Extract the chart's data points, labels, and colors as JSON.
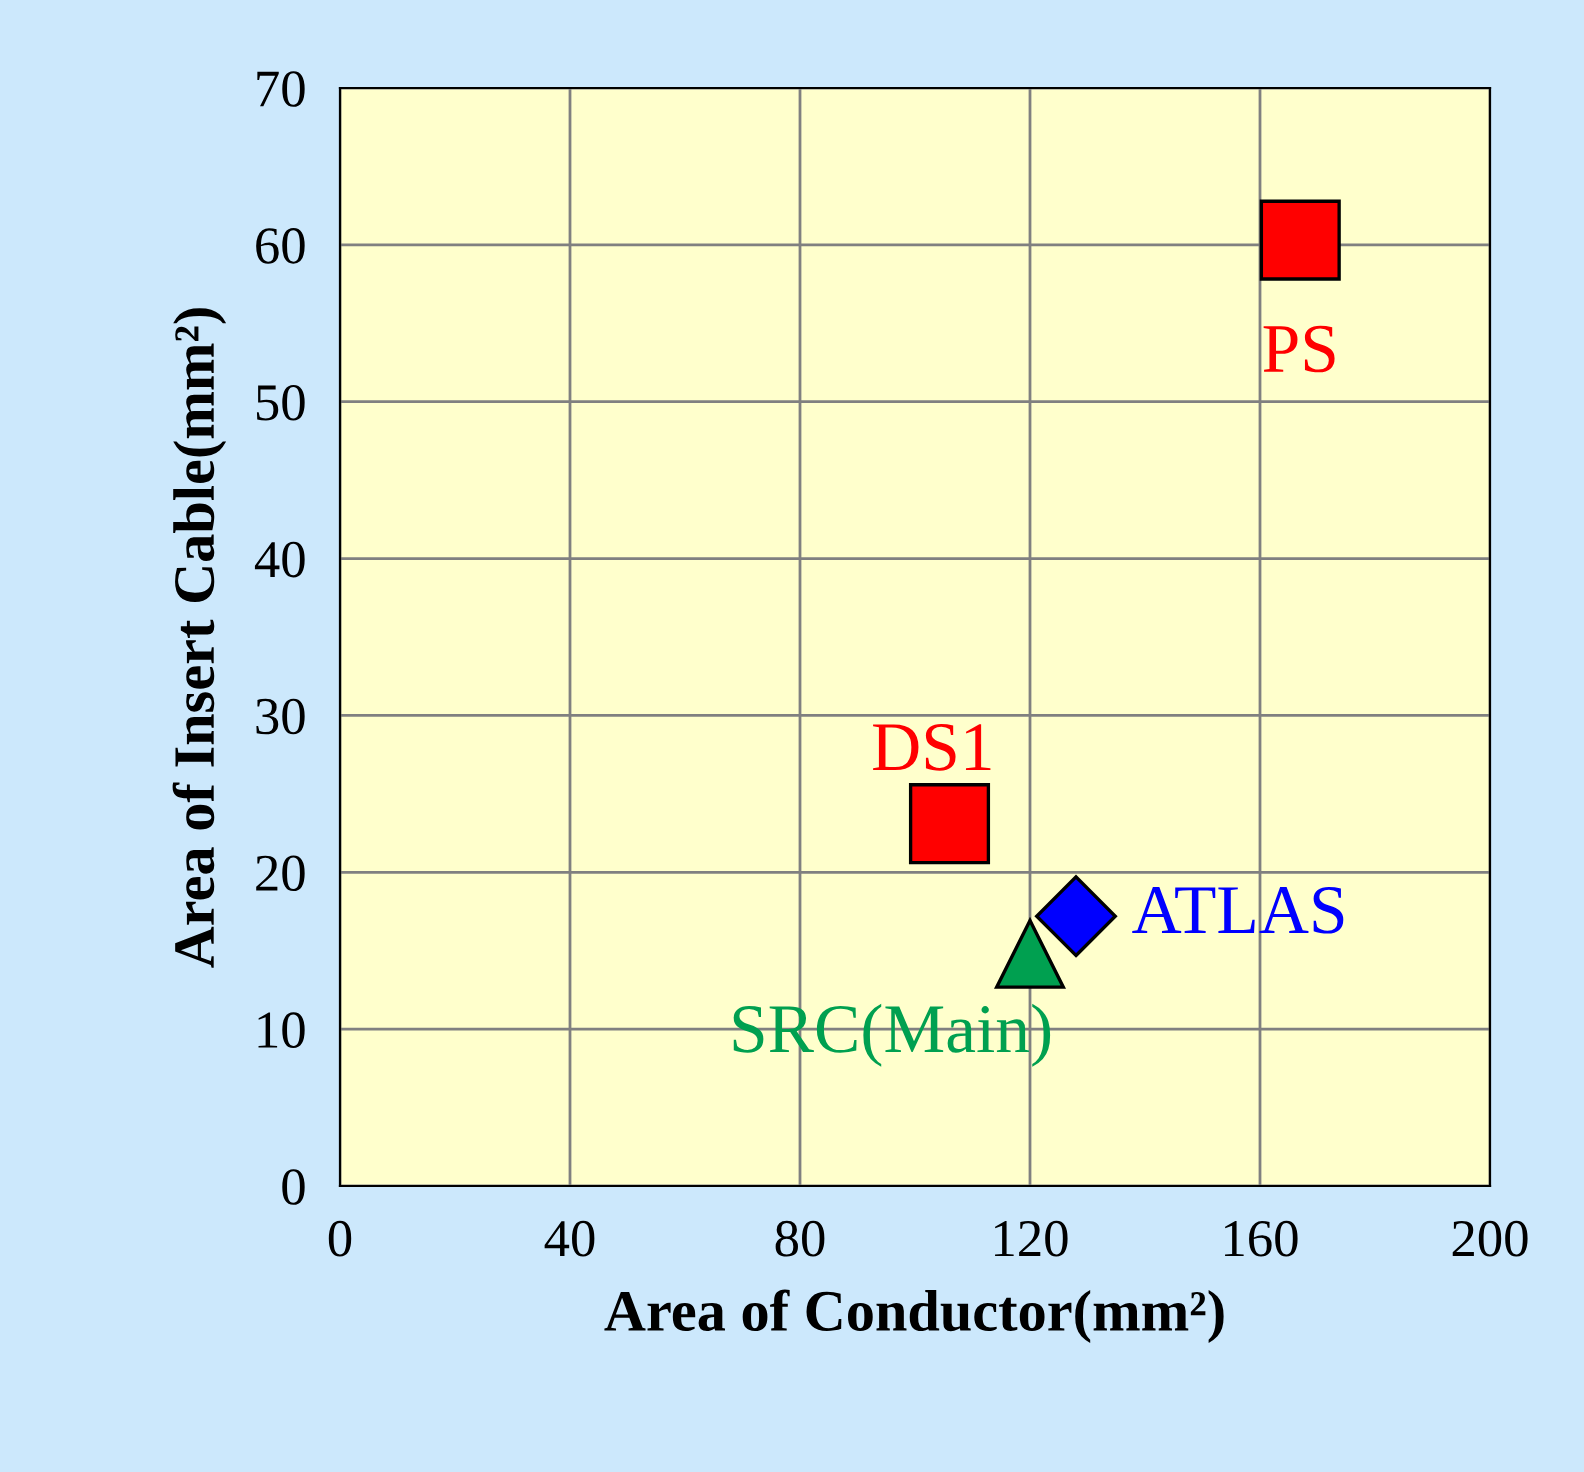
{
  "chart_data": {
    "type": "scatter",
    "xlabel": "Area of Conductor(mm²)",
    "ylabel": "Area of Insert Cable(mm²)",
    "xlim": [
      0,
      200
    ],
    "xticks": [
      0,
      40,
      80,
      120,
      160,
      200
    ],
    "ylim": [
      0,
      70
    ],
    "yticks": [
      0,
      10,
      20,
      30,
      40,
      50,
      60,
      70
    ],
    "grid": true,
    "legend": false,
    "series": [
      {
        "name": "PS",
        "color": "#ff0000",
        "marker": "square",
        "x": [
          167
        ],
        "values": [
          60.3
        ]
      },
      {
        "name": "DS1",
        "color": "#ff0000",
        "marker": "square",
        "x": [
          106
        ],
        "values": [
          23.1
        ]
      },
      {
        "name": "ATLAS",
        "color": "#0000ff",
        "marker": "diamond",
        "x": [
          128
        ],
        "values": [
          17.2
        ]
      },
      {
        "name": "SRC(Main)",
        "color": "#00a050",
        "marker": "triangle",
        "x": [
          120
        ],
        "values": [
          14.8
        ]
      }
    ]
  }
}
